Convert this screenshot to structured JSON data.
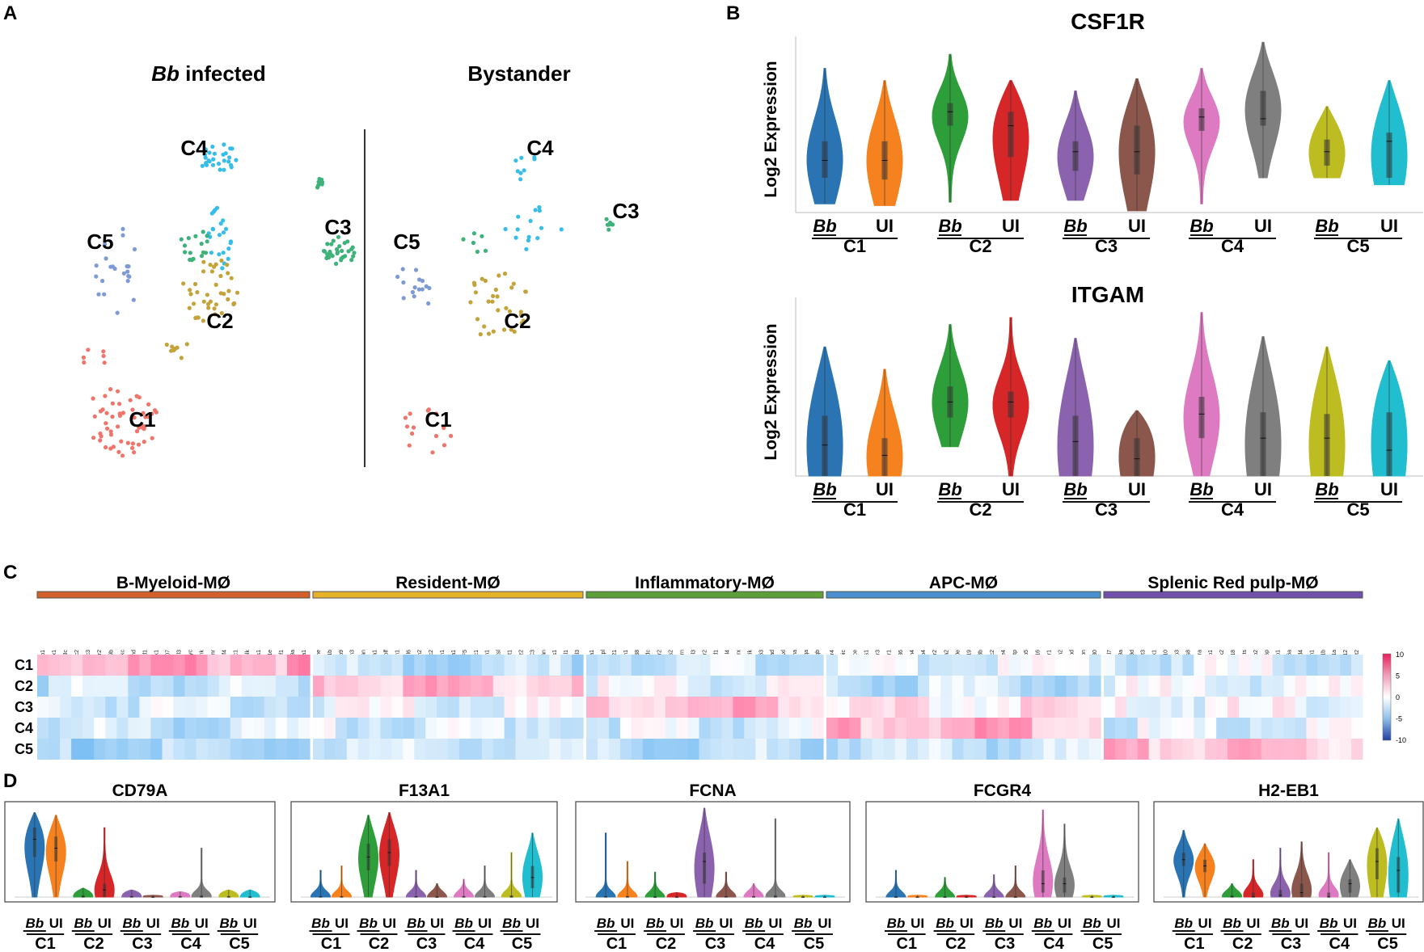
{
  "panels": {
    "a": "A",
    "b": "B",
    "c": "C",
    "d": "D"
  },
  "colors": {
    "C1": "#f07469",
    "C2": "#c3a33a",
    "C3": "#3db27a",
    "C4": "#36bde8",
    "C5": "#7d9ad4",
    "violin": [
      "#2a74b4",
      "#f5811f",
      "#2d9e3a",
      "#d62628",
      "#8b62ad",
      "#8b564b",
      "#de7ac2",
      "#7f7f7f",
      "#bdbd22",
      "#20becf"
    ],
    "cat_bars": [
      "#d35f2c",
      "#e5b128",
      "#5c9e37",
      "#4a8fcf",
      "#7050a8"
    ]
  },
  "panel_a": {
    "left_title_italic": "Bb",
    "left_title_rest": " infected",
    "right_title": "Bystander",
    "cluster_labels": [
      "C1",
      "C2",
      "C3",
      "C4",
      "C5"
    ]
  },
  "chart_data": [
    {
      "type": "violin",
      "title": "CSF1R",
      "ylabel": "Log2 Expression",
      "groups": [
        "C1",
        "C2",
        "C3",
        "C4",
        "C5"
      ],
      "conditions": [
        "Bb",
        "UI"
      ],
      "ylim": [
        0,
        1
      ],
      "series": [
        {
          "group": "C1",
          "condition": "Bb",
          "min": 0.05,
          "q1": 0.2,
          "median": 0.3,
          "q3": 0.41,
          "max": 0.83
        },
        {
          "group": "C1",
          "condition": "UI",
          "min": 0.04,
          "q1": 0.19,
          "median": 0.3,
          "q3": 0.41,
          "max": 0.76
        },
        {
          "group": "C2",
          "condition": "Bb",
          "min": 0.06,
          "q1": 0.5,
          "median": 0.58,
          "q3": 0.63,
          "max": 0.91
        },
        {
          "group": "C2",
          "condition": "UI",
          "min": 0.07,
          "q1": 0.32,
          "median": 0.5,
          "q3": 0.58,
          "max": 0.76
        },
        {
          "group": "C3",
          "condition": "Bb",
          "min": 0.07,
          "q1": 0.24,
          "median": 0.35,
          "q3": 0.41,
          "max": 0.7
        },
        {
          "group": "C3",
          "condition": "UI",
          "min": 0.01,
          "q1": 0.22,
          "median": 0.35,
          "q3": 0.5,
          "max": 0.77
        },
        {
          "group": "C4",
          "condition": "Bb",
          "min": 0.05,
          "q1": 0.47,
          "median": 0.55,
          "q3": 0.6,
          "max": 0.83
        },
        {
          "group": "C4",
          "condition": "UI",
          "min": 0.2,
          "q1": 0.5,
          "median": 0.54,
          "q3": 0.7,
          "max": 0.98
        },
        {
          "group": "C5",
          "condition": "Bb",
          "min": 0.2,
          "q1": 0.27,
          "median": 0.35,
          "q3": 0.42,
          "max": 0.61
        },
        {
          "group": "C5",
          "condition": "UI",
          "min": 0.16,
          "q1": 0.2,
          "median": 0.41,
          "q3": 0.46,
          "max": 0.76
        }
      ]
    },
    {
      "type": "violin",
      "title": "ITGAM",
      "ylabel": "Log2 Expression",
      "groups": [
        "C1",
        "C2",
        "C3",
        "C4",
        "C5"
      ],
      "conditions": [
        "Bb",
        "UI"
      ],
      "ylim": [
        0,
        1
      ],
      "series": [
        {
          "group": "C1",
          "condition": "Bb",
          "min": 0.0,
          "q1": 0.0,
          "median": 0.18,
          "q3": 0.35,
          "max": 0.75
        },
        {
          "group": "C1",
          "condition": "UI",
          "min": 0.0,
          "q1": 0.0,
          "median": 0.12,
          "q3": 0.22,
          "max": 0.62
        },
        {
          "group": "C2",
          "condition": "Bb",
          "min": 0.17,
          "q1": 0.34,
          "median": 0.43,
          "q3": 0.52,
          "max": 0.88
        },
        {
          "group": "C2",
          "condition": "UI",
          "min": 0.0,
          "q1": 0.34,
          "median": 0.43,
          "q3": 0.49,
          "max": 0.92
        },
        {
          "group": "C3",
          "condition": "Bb",
          "min": 0.0,
          "q1": 0.0,
          "median": 0.2,
          "q3": 0.35,
          "max": 0.8
        },
        {
          "group": "C3",
          "condition": "UI",
          "min": 0.0,
          "q1": 0.0,
          "median": 0.1,
          "q3": 0.22,
          "max": 0.38
        },
        {
          "group": "C4",
          "condition": "Bb",
          "min": 0.0,
          "q1": 0.22,
          "median": 0.36,
          "q3": 0.46,
          "max": 0.95
        },
        {
          "group": "C4",
          "condition": "UI",
          "min": 0.0,
          "q1": 0.0,
          "median": 0.22,
          "q3": 0.37,
          "max": 0.81
        },
        {
          "group": "C5",
          "condition": "Bb",
          "min": 0.0,
          "q1": 0.0,
          "median": 0.22,
          "q3": 0.36,
          "max": 0.75
        },
        {
          "group": "C5",
          "condition": "UI",
          "min": 0.0,
          "q1": 0.0,
          "median": 0.15,
          "q3": 0.37,
          "max": 0.67
        }
      ]
    },
    {
      "type": "heatmap",
      "rows": [
        "C1",
        "C2",
        "C3",
        "C4",
        "C5"
      ],
      "colorbar_ticks": [
        "10",
        "5",
        "0",
        "-5",
        "-10"
      ],
      "value_range": [
        -10,
        10
      ],
      "categories": [
        {
          "name": "B-Myeloid-MØ",
          "genes": [
            "Mzb1",
            "Utx1",
            "Tnfrsf13c",
            "Iglc2",
            "Iglc3",
            "Cr2",
            "Cd79b",
            "Igkc",
            "Ighd",
            "Scd1",
            "Bank1",
            "BE692007",
            "Gnl3",
            "Myc",
            "Blnk",
            "Fcmr",
            "Irf4",
            "Dkc1",
            "Blk",
            "Rrs1",
            "Mys1e",
            "Ebf1",
            "Cd79a",
            "Ms4a1"
          ],
          "row_means": [
            4,
            -2.5,
            -1.5,
            -2.5,
            -4
          ]
        },
        {
          "name": "Resident-MØ",
          "genes": [
            "Ebane",
            "Hist1h1b",
            "Mmp9",
            "Prtn3",
            "Tspan",
            "Itga1",
            "Pcolf",
            "Stmn1",
            "Il6",
            "Aldh2",
            "Ly6c2",
            "Fn1",
            "F13a1",
            "F5",
            "Ly6c1",
            "Gstm1",
            "Ctsl",
            "Mgst1",
            "Lyz2",
            "C3",
            "Vcan",
            "Thbs1",
            "Cxcl1",
            "Chil3"
          ],
          "row_means": [
            -3,
            3,
            -1,
            -1.5,
            -2
          ]
        },
        {
          "name": "Inflammatory-MØ",
          "genes": [
            "Stfa1",
            "Stpl",
            "Wdc21",
            "Cdh1",
            "AW011738",
            "Hdc",
            "Cxcr2",
            "G0s2",
            "Il1rn",
            "Ccl3",
            "Hcar2",
            "Acod1",
            "Ccl4",
            "Ptrx",
            "F630028O10Rik",
            "Cd63",
            "Itgad",
            "Axl",
            "Fcna",
            "C1qa",
            "C1qb"
          ],
          "row_means": [
            -2,
            -1,
            3,
            -1.5,
            -3
          ]
        },
        {
          "name": "APC-MØ",
          "genes": [
            "Fcgr4",
            "Spic",
            "Ace",
            "Lims1",
            "Emr3",
            "Olr1",
            "Cd36",
            "Trem4",
            "Fabp4",
            "Ear2",
            "Slc12a2",
            "Cd300e",
            "Mmp19",
            "Smpdl3b",
            "Cd300c2",
            "Adgre4",
            "Pltp",
            "Acp5",
            "Dusp16",
            "Lair1",
            "Tgm2",
            "Cpd",
            "Spn",
            "Kit80"
          ],
          "row_means": [
            -1.5,
            -2.5,
            1,
            3.5,
            -2.5
          ]
        },
        {
          "name": "Splenic Red pulp-MØ",
          "genes": [
            "Ccl7",
            "Cd209a",
            "Cd209d",
            "Flt3",
            "Klrk1",
            "P2ry10",
            "Ramp3",
            "Eps8",
            "Rora",
            "Tep1",
            "Jak2",
            "Zbtb18",
            "Ets",
            "Cd3zb2",
            "Grasp",
            "Spp1",
            "Tmem176a",
            "Tbc1d4",
            "Ifitm1",
            "Hspa1b",
            "Hspa1a",
            "Mmp12",
            "Gcnt2"
          ],
          "row_means": [
            -1.5,
            -1,
            -0.5,
            -1.5,
            3
          ]
        }
      ]
    },
    {
      "type": "violin",
      "title": "CD79A",
      "groups": [
        "C1",
        "C2",
        "C3",
        "C4",
        "C5"
      ],
      "conditions": [
        "Bb",
        "UI"
      ],
      "ylim": [
        0,
        1
      ],
      "series": [
        {
          "group": "C1",
          "condition": "Bb",
          "min": 0,
          "q1": 0.45,
          "median": 0.65,
          "q3": 0.78,
          "max": 0.95
        },
        {
          "group": "C1",
          "condition": "UI",
          "min": 0,
          "q1": 0.4,
          "median": 0.55,
          "q3": 0.68,
          "max": 0.92
        },
        {
          "group": "C2",
          "condition": "Bb",
          "min": 0,
          "q1": 0,
          "median": 0,
          "q3": 0.02,
          "max": 0.1
        },
        {
          "group": "C2",
          "condition": "UI",
          "min": 0,
          "q1": 0,
          "median": 0.08,
          "q3": 0.15,
          "max": 0.78
        },
        {
          "group": "C3",
          "condition": "Bb",
          "min": 0,
          "q1": 0,
          "median": 0,
          "q3": 0.01,
          "max": 0.08
        },
        {
          "group": "C3",
          "condition": "UI",
          "min": 0,
          "q1": 0,
          "median": 0,
          "q3": 0,
          "max": 0.02
        },
        {
          "group": "C4",
          "condition": "Bb",
          "min": 0,
          "q1": 0,
          "median": 0,
          "q3": 0.01,
          "max": 0.06
        },
        {
          "group": "C4",
          "condition": "UI",
          "min": 0,
          "q1": 0,
          "median": 0,
          "q3": 0.02,
          "max": 0.55
        },
        {
          "group": "C5",
          "condition": "Bb",
          "min": 0,
          "q1": 0,
          "median": 0,
          "q3": 0.01,
          "max": 0.08
        },
        {
          "group": "C5",
          "condition": "UI",
          "min": 0,
          "q1": 0,
          "median": 0,
          "q3": 0,
          "max": 0.08
        }
      ]
    },
    {
      "type": "violin",
      "title": "F13A1",
      "groups": [
        "C1",
        "C2",
        "C3",
        "C4",
        "C5"
      ],
      "conditions": [
        "Bb",
        "UI"
      ],
      "ylim": [
        0,
        1
      ],
      "series": [
        {
          "group": "C1",
          "condition": "Bb",
          "min": 0,
          "q1": 0,
          "median": 0,
          "q3": 0.01,
          "max": 0.3
        },
        {
          "group": "C1",
          "condition": "UI",
          "min": 0,
          "q1": 0,
          "median": 0,
          "q3": 0.01,
          "max": 0.35
        },
        {
          "group": "C2",
          "condition": "Bb",
          "min": 0,
          "q1": 0.3,
          "median": 0.45,
          "q3": 0.6,
          "max": 0.92
        },
        {
          "group": "C2",
          "condition": "UI",
          "min": 0,
          "q1": 0.35,
          "median": 0.5,
          "q3": 0.65,
          "max": 0.95
        },
        {
          "group": "C3",
          "condition": "Bb",
          "min": 0,
          "q1": 0,
          "median": 0,
          "q3": 0.01,
          "max": 0.3
        },
        {
          "group": "C3",
          "condition": "UI",
          "min": 0,
          "q1": 0,
          "median": 0,
          "q3": 0,
          "max": 0.15
        },
        {
          "group": "C4",
          "condition": "Bb",
          "min": 0,
          "q1": 0,
          "median": 0,
          "q3": 0.01,
          "max": 0.2
        },
        {
          "group": "C4",
          "condition": "UI",
          "min": 0,
          "q1": 0,
          "median": 0,
          "q3": 0.01,
          "max": 0.35
        },
        {
          "group": "C5",
          "condition": "Bb",
          "min": 0,
          "q1": 0,
          "median": 0,
          "q3": 0.02,
          "max": 0.5
        },
        {
          "group": "C5",
          "condition": "UI",
          "min": 0,
          "q1": 0.1,
          "median": 0.22,
          "q3": 0.35,
          "max": 0.72
        }
      ]
    },
    {
      "type": "violin",
      "title": "FCNA",
      "groups": [
        "C1",
        "C2",
        "C3",
        "C4",
        "C5"
      ],
      "conditions": [
        "Bb",
        "UI"
      ],
      "ylim": [
        0,
        1
      ],
      "series": [
        {
          "group": "C1",
          "condition": "Bb",
          "min": 0,
          "q1": 0,
          "median": 0,
          "q3": 0.01,
          "max": 0.72
        },
        {
          "group": "C1",
          "condition": "UI",
          "min": 0,
          "q1": 0,
          "median": 0,
          "q3": 0.01,
          "max": 0.4
        },
        {
          "group": "C2",
          "condition": "Bb",
          "min": 0,
          "q1": 0,
          "median": 0,
          "q3": 0,
          "max": 0.28
        },
        {
          "group": "C2",
          "condition": "UI",
          "min": 0,
          "q1": 0,
          "median": 0,
          "q3": 0,
          "max": 0.05
        },
        {
          "group": "C3",
          "condition": "Bb",
          "min": 0,
          "q1": 0.15,
          "median": 0.4,
          "q3": 0.5,
          "max": 1.0
        },
        {
          "group": "C3",
          "condition": "UI",
          "min": 0,
          "q1": 0,
          "median": 0,
          "q3": 0.01,
          "max": 0.28
        },
        {
          "group": "C4",
          "condition": "Bb",
          "min": 0,
          "q1": 0,
          "median": 0,
          "q3": 0.01,
          "max": 0.15
        },
        {
          "group": "C4",
          "condition": "UI",
          "min": 0,
          "q1": 0,
          "median": 0,
          "q3": 0.02,
          "max": 0.88
        },
        {
          "group": "C5",
          "condition": "Bb",
          "min": 0,
          "q1": 0,
          "median": 0,
          "q3": 0,
          "max": 0.02
        },
        {
          "group": "C5",
          "condition": "UI",
          "min": 0,
          "q1": 0,
          "median": 0,
          "q3": 0,
          "max": 0.02
        }
      ]
    },
    {
      "type": "violin",
      "title": "FCGR4",
      "groups": [
        "C1",
        "C2",
        "C3",
        "C4",
        "C5"
      ],
      "conditions": [
        "Bb",
        "UI"
      ],
      "ylim": [
        0,
        1
      ],
      "series": [
        {
          "group": "C1",
          "condition": "Bb",
          "min": 0,
          "q1": 0,
          "median": 0,
          "q3": 0,
          "max": 0.3
        },
        {
          "group": "C1",
          "condition": "UI",
          "min": 0,
          "q1": 0,
          "median": 0,
          "q3": 0,
          "max": 0.02
        },
        {
          "group": "C2",
          "condition": "Bb",
          "min": 0,
          "q1": 0,
          "median": 0,
          "q3": 0,
          "max": 0.22
        },
        {
          "group": "C2",
          "condition": "UI",
          "min": 0,
          "q1": 0,
          "median": 0,
          "q3": 0,
          "max": 0.02
        },
        {
          "group": "C3",
          "condition": "Bb",
          "min": 0,
          "q1": 0,
          "median": 0,
          "q3": 0,
          "max": 0.25
        },
        {
          "group": "C3",
          "condition": "UI",
          "min": 0,
          "q1": 0,
          "median": 0,
          "q3": 0,
          "max": 0.35
        },
        {
          "group": "C4",
          "condition": "Bb",
          "min": 0,
          "q1": 0.05,
          "median": 0.15,
          "q3": 0.3,
          "max": 0.98
        },
        {
          "group": "C4",
          "condition": "UI",
          "min": 0,
          "q1": 0.05,
          "median": 0.15,
          "q3": 0.22,
          "max": 0.82
        },
        {
          "group": "C5",
          "condition": "Bb",
          "min": 0,
          "q1": 0,
          "median": 0,
          "q3": 0,
          "max": 0.02
        },
        {
          "group": "C5",
          "condition": "UI",
          "min": 0,
          "q1": 0,
          "median": 0,
          "q3": 0,
          "max": 0.02
        }
      ]
    },
    {
      "type": "violin",
      "title": "H2-EB1",
      "groups": [
        "C1",
        "C2",
        "C3",
        "C4",
        "C5"
      ],
      "conditions": [
        "Bb",
        "UI"
      ],
      "ylim": [
        0,
        1
      ],
      "series": [
        {
          "group": "C1",
          "condition": "Bb",
          "min": 0,
          "q1": 0.35,
          "median": 0.42,
          "q3": 0.5,
          "max": 0.75
        },
        {
          "group": "C1",
          "condition": "UI",
          "min": 0,
          "q1": 0.28,
          "median": 0.35,
          "q3": 0.42,
          "max": 0.6
        },
        {
          "group": "C2",
          "condition": "Bb",
          "min": 0,
          "q1": 0,
          "median": 0,
          "q3": 0.02,
          "max": 0.15
        },
        {
          "group": "C2",
          "condition": "UI",
          "min": 0,
          "q1": 0,
          "median": 0,
          "q3": 0.05,
          "max": 0.42
        },
        {
          "group": "C3",
          "condition": "Bb",
          "min": 0,
          "q1": 0,
          "median": 0.02,
          "q3": 0.08,
          "max": 0.55
        },
        {
          "group": "C3",
          "condition": "UI",
          "min": 0,
          "q1": 0,
          "median": 0.05,
          "q3": 0.15,
          "max": 0.62
        },
        {
          "group": "C4",
          "condition": "Bb",
          "min": 0,
          "q1": 0,
          "median": 0,
          "q3": 0.05,
          "max": 0.5
        },
        {
          "group": "C4",
          "condition": "UI",
          "min": 0,
          "q1": 0.05,
          "median": 0.15,
          "q3": 0.2,
          "max": 0.42
        },
        {
          "group": "C5",
          "condition": "Bb",
          "min": 0,
          "q1": 0.2,
          "median": 0.4,
          "q3": 0.55,
          "max": 0.78
        },
        {
          "group": "C5",
          "condition": "UI",
          "min": 0,
          "q1": 0.05,
          "median": 0.3,
          "q3": 0.45,
          "max": 0.88
        }
      ]
    }
  ]
}
